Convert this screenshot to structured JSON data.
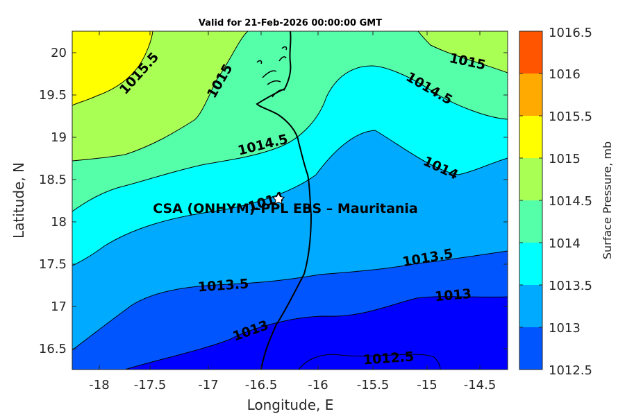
{
  "figure": {
    "title": "Valid for 21-Feb-2026 00:00:00 GMT",
    "xlabel": "Longitude, E",
    "ylabel": "Latitude, N",
    "x_ticks": [
      "-18",
      "-17.5",
      "-17",
      "-16.5",
      "-16",
      "-15.5",
      "-15",
      "-14.5"
    ],
    "y_ticks": [
      "20",
      "19.5",
      "19",
      "18.5",
      "18",
      "17.5",
      "17",
      "16.5"
    ],
    "site_label": "CSA (ONHYM)-PPL EBS  – Mauritania",
    "marker_icon": "white-star-icon"
  },
  "colorbar": {
    "label": "Surface Pressure, mb",
    "ticks": [
      "1016.5",
      "1016",
      "1015.5",
      "1015",
      "1014.5",
      "1014",
      "1013.5",
      "1013",
      "1012.5"
    ],
    "colors": [
      "#ff5500",
      "#ffaa00",
      "#ffff00",
      "#aaff55",
      "#55ffaa",
      "#00ffff",
      "#00aaff",
      "#0055ff",
      "#0000ff"
    ]
  },
  "contour_labels": {
    "c1015_5": "1015.5",
    "c1015_a": "1015",
    "c1015_b": "1015",
    "c1014_5_a": "1014.5",
    "c1014_5_b": "1014.5",
    "c1014_a": "1014",
    "c1014_b": "1014",
    "c1013_5_a": "1013.5",
    "c1013_5_b": "1013.5",
    "c1013_a": "1013",
    "c1013_b": "1013",
    "c1012_5": "1012.5"
  }
}
